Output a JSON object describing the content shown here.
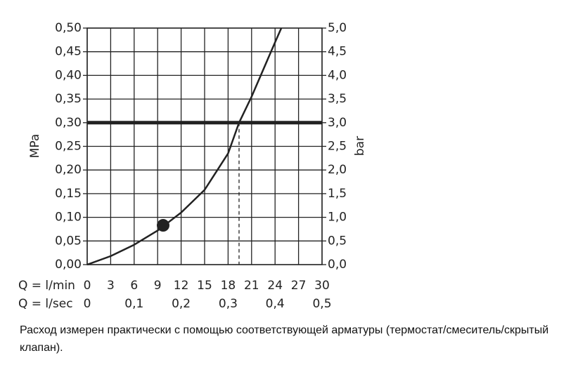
{
  "chart_data": {
    "type": "line",
    "ylabel": "MPa",
    "y2label": "bar",
    "x_row_label": "Q = l/min",
    "x2_row_label": "Q = l/sec",
    "xlim": [
      0,
      30
    ],
    "xticks": [
      0,
      3,
      6,
      9,
      12,
      15,
      18,
      21,
      24,
      27,
      30
    ],
    "x2lim": [
      0,
      0.5
    ],
    "x2ticks": [
      0,
      {
        "value": 0.1,
        "label": "0,1"
      },
      {
        "value": 0.2,
        "label": "0,2"
      },
      {
        "value": 0.3,
        "label": "0,3"
      },
      {
        "value": 0.4,
        "label": "0,4"
      },
      {
        "value": 0.5,
        "label": "0,5"
      }
    ],
    "ylim": [
      0,
      0.5
    ],
    "yticks": [
      {
        "value": 0,
        "label": "0,00"
      },
      {
        "value": 0.05,
        "label": "0,05"
      },
      {
        "value": 0.1,
        "label": "0,10"
      },
      {
        "value": 0.15,
        "label": "0,15"
      },
      {
        "value": 0.2,
        "label": "0,20"
      },
      {
        "value": 0.25,
        "label": "0,25"
      },
      {
        "value": 0.3,
        "label": "0,30"
      },
      {
        "value": 0.35,
        "label": "0,35"
      },
      {
        "value": 0.4,
        "label": "0,40"
      },
      {
        "value": 0.45,
        "label": "0,45"
      },
      {
        "value": 0.5,
        "label": "0,50"
      }
    ],
    "y2lim": [
      0,
      5
    ],
    "y2ticks": [
      {
        "value": 0,
        "label": "0,0"
      },
      {
        "value": 0.5,
        "label": "0,5"
      },
      {
        "value": 1,
        "label": "1,0"
      },
      {
        "value": 1.5,
        "label": "1,5"
      },
      {
        "value": 2,
        "label": "2,0"
      },
      {
        "value": 2.5,
        "label": "2,5"
      },
      {
        "value": 3,
        "label": "3,0"
      },
      {
        "value": 3.5,
        "label": "3,5"
      },
      {
        "value": 4,
        "label": "4,0"
      },
      {
        "value": 4.5,
        "label": "4,5"
      },
      {
        "value": 5,
        "label": "5,0"
      }
    ],
    "grid": true,
    "x": [
      0,
      3,
      6,
      9,
      12,
      15,
      18,
      19.4,
      21,
      24,
      24.8
    ],
    "series": [
      {
        "color": "#222222",
        "values": [
          0,
          0.018,
          0.042,
          0.072,
          0.11,
          0.158,
          0.235,
          0.3,
          0.355,
          0.47,
          0.5
        ]
      }
    ],
    "marker": {
      "x": 9.7,
      "y": 0.083
    },
    "reference_y": 0.3,
    "reference_x": 19.4,
    "caption": "Расход измерен практически с помощью соответствующей арматуры (термостат/смеситель/скрытый клапан)."
  }
}
